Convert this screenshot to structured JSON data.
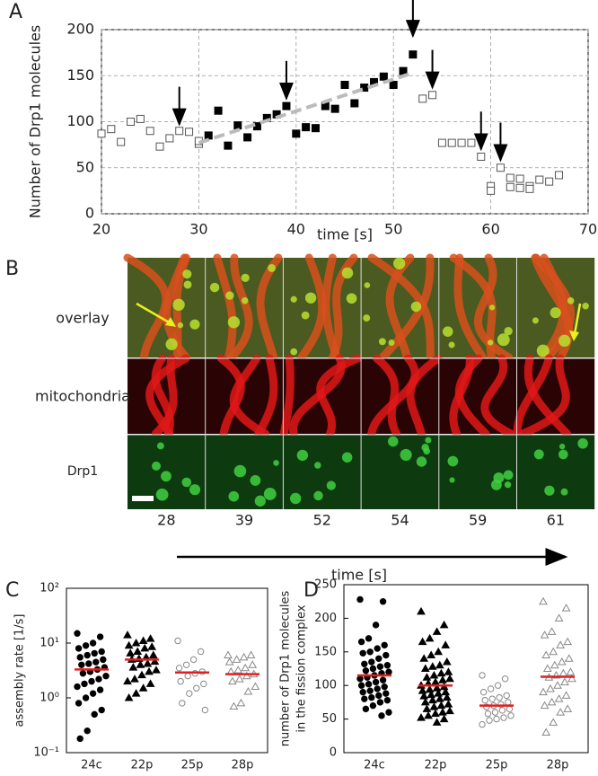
{
  "chart_data": [
    {
      "type": "scatter",
      "panel": "A",
      "xlabel": "time [s]",
      "ylabel": "Number of Drp1 molecules",
      "xlim": [
        20,
        70
      ],
      "xticks": [
        20,
        30,
        40,
        50,
        60,
        70
      ],
      "ylim": [
        0,
        200
      ],
      "yticks": [
        0,
        50,
        100,
        150,
        200
      ],
      "grid": true,
      "series": [
        {
          "marker": "square-open",
          "color": "#555555",
          "x": [
            20,
            21,
            22,
            23,
            24,
            25,
            26,
            27,
            28,
            29,
            30,
            30,
            53,
            54,
            55,
            56,
            57,
            58,
            59,
            60,
            60,
            61,
            62,
            62,
            63,
            63,
            64,
            64,
            65,
            66,
            67
          ],
          "values": [
            87,
            92,
            78,
            100,
            103,
            90,
            73,
            82,
            90,
            89,
            76,
            79,
            125,
            129,
            77,
            77,
            77,
            77,
            62,
            30,
            25,
            50,
            39,
            29,
            38,
            28,
            30,
            27,
            37,
            35,
            42
          ]
        },
        {
          "marker": "square-filled",
          "color": "#000000",
          "x": [
            31,
            32,
            33,
            34,
            35,
            36,
            37,
            38,
            39,
            40,
            41,
            42,
            43,
            44,
            45,
            46,
            47,
            48,
            49,
            50,
            51,
            52
          ],
          "values": [
            85,
            112,
            74,
            96,
            83,
            95,
            104,
            108,
            117,
            87,
            94,
            93,
            117,
            114,
            140,
            120,
            137,
            143,
            149,
            140,
            155,
            173
          ]
        },
        {
          "marker": "dashed-line",
          "color": "#bbbbbb",
          "x": [
            30,
            52
          ],
          "values": [
            77,
            153
          ]
        }
      ],
      "arrows": {
        "x": [
          28,
          39,
          52,
          54,
          59,
          61
        ],
        "values": [
          97,
          125,
          193,
          137,
          70,
          58
        ],
        "color": "#000000"
      }
    },
    {
      "type": "strip",
      "panel": "C",
      "ylabel": [
        "assembly rate [1/s]"
      ],
      "log_y": true,
      "ylim": [
        0.1,
        100
      ],
      "yticks": [
        {
          "value": 0.1,
          "label": "10⁻¹"
        },
        {
          "value": 1,
          "label": "10⁰"
        },
        {
          "value": 10,
          "label": "10¹"
        },
        {
          "value": 100,
          "label": "10²"
        }
      ],
      "categories": [
        "24c",
        "22p",
        "25p",
        "28p"
      ],
      "median_color": "#e02020",
      "series": [
        {
          "marker": "circle",
          "filled": true,
          "color": "#000000",
          "median": 3.3,
          "values": [
            15,
            13,
            10,
            9,
            8,
            7,
            6.5,
            6,
            5.5,
            5,
            4.5,
            4.2,
            4,
            3.6,
            3.3,
            3,
            2.8,
            2.5,
            2.2,
            2,
            1.8,
            1.6,
            1.4,
            1.2,
            1.0,
            0.8,
            0.6,
            0.5,
            0.25,
            0.18
          ]
        },
        {
          "marker": "triangle",
          "filled": true,
          "color": "#000000",
          "median": 5.0,
          "values": [
            14,
            12,
            11,
            10,
            9,
            8.5,
            8,
            7,
            6.5,
            6,
            5.5,
            5.2,
            5,
            4.6,
            4.2,
            4,
            3.6,
            3.2,
            3,
            2.6,
            2.2,
            2,
            1.8,
            1.5,
            1.2,
            1.0
          ]
        },
        {
          "marker": "circle",
          "filled": false,
          "color": "#888888",
          "median": 2.9,
          "values": [
            11,
            7,
            5,
            4,
            3.5,
            3,
            2.8,
            2.5,
            2,
            1.8,
            1.5,
            1.2,
            0.8,
            0.6
          ]
        },
        {
          "marker": "triangle",
          "filled": false,
          "color": "#888888",
          "median": 2.7,
          "values": [
            6,
            6,
            5.5,
            5,
            4.5,
            4,
            3.5,
            3.2,
            3,
            2.7,
            2.5,
            2.2,
            2,
            1.6,
            1.3,
            0.8,
            0.7
          ]
        }
      ]
    },
    {
      "type": "strip",
      "panel": "D",
      "ylabel": [
        "number of Drp1 molecules",
        "in the fission complex"
      ],
      "ylim": [
        0,
        250
      ],
      "yticks": [
        0,
        50,
        100,
        150,
        200,
        250
      ],
      "categories": [
        "24c",
        "22p",
        "25p",
        "28p"
      ],
      "median_color": "#e02020",
      "series": [
        {
          "marker": "circle",
          "filled": true,
          "color": "#000000",
          "median": 115,
          "values": [
            228,
            225,
            190,
            170,
            165,
            160,
            155,
            150,
            148,
            145,
            140,
            135,
            132,
            130,
            128,
            125,
            122,
            120,
            118,
            115,
            112,
            110,
            108,
            105,
            102,
            100,
            98,
            95,
            92,
            90,
            88,
            85,
            82,
            80,
            78,
            75,
            70,
            65,
            60,
            55
          ]
        },
        {
          "marker": "triangle",
          "filled": true,
          "color": "#000000",
          "median": 100,
          "values": [
            210,
            190,
            180,
            170,
            165,
            160,
            150,
            145,
            140,
            135,
            130,
            128,
            125,
            120,
            118,
            115,
            112,
            110,
            108,
            105,
            103,
            100,
            98,
            96,
            94,
            92,
            90,
            88,
            86,
            84,
            82,
            80,
            78,
            75,
            72,
            70,
            68,
            65,
            62,
            60,
            58,
            55,
            52,
            50,
            45
          ]
        },
        {
          "marker": "circle",
          "filled": false,
          "color": "#888888",
          "median": 70,
          "values": [
            115,
            110,
            100,
            95,
            90,
            85,
            82,
            80,
            78,
            75,
            72,
            70,
            68,
            65,
            63,
            60,
            58,
            55,
            52,
            50,
            48,
            42
          ]
        },
        {
          "marker": "triangle",
          "filled": false,
          "color": "#888888",
          "median": 113,
          "values": [
            225,
            215,
            200,
            180,
            175,
            165,
            160,
            150,
            145,
            140,
            135,
            130,
            125,
            120,
            118,
            115,
            112,
            110,
            105,
            100,
            95,
            90,
            85,
            80,
            75,
            70,
            65,
            60,
            45,
            30
          ]
        }
      ]
    }
  ],
  "image_panel": {
    "panel": "B",
    "rows": [
      "overlay",
      "mitochondria",
      "Drp1"
    ],
    "times": [
      "28",
      "39",
      "52",
      "54",
      "59",
      "61"
    ],
    "axis_label": "time [s]"
  }
}
